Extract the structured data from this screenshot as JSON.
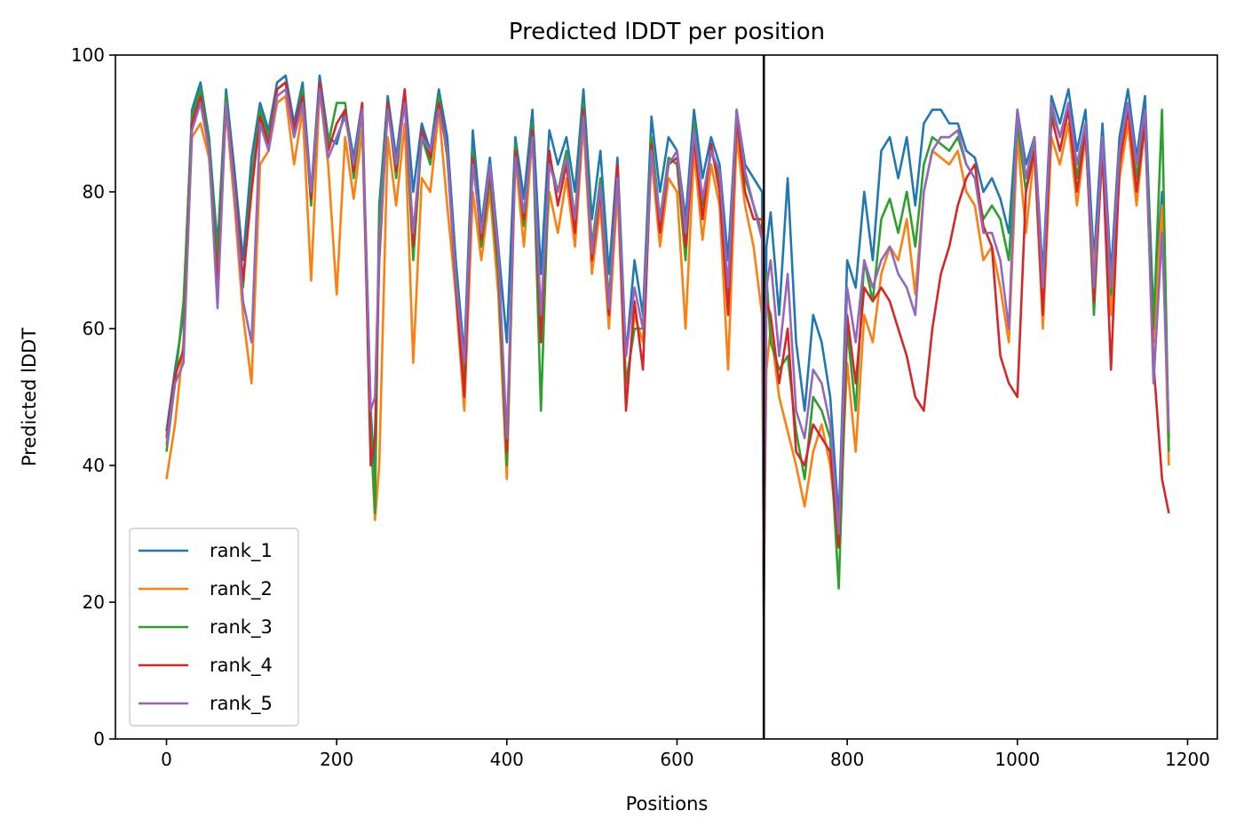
{
  "chart_data": {
    "type": "line",
    "title": "Predicted lDDT per position",
    "xlabel": "Positions",
    "ylabel": "Predicted lDDT",
    "xlim": [
      -60,
      1235
    ],
    "ylim": [
      0,
      100
    ],
    "xticks": [
      0,
      200,
      400,
      600,
      800,
      1000,
      1200
    ],
    "yticks": [
      0,
      20,
      40,
      60,
      80,
      100
    ],
    "grid": false,
    "legend_position": "lower-left",
    "vline_x": 702,
    "vline_color": "#000000",
    "series": [
      {
        "name": "rank_1",
        "color": "#1f77b4",
        "x": [
          0,
          10,
          20,
          30,
          40,
          50,
          60,
          70,
          80,
          90,
          100,
          110,
          120,
          130,
          140,
          150,
          160,
          170,
          180,
          190,
          200,
          210,
          220,
          230,
          240,
          245,
          250,
          260,
          270,
          280,
          290,
          300,
          310,
          320,
          330,
          340,
          350,
          360,
          370,
          380,
          390,
          400,
          410,
          420,
          430,
          440,
          450,
          460,
          470,
          480,
          490,
          500,
          510,
          520,
          530,
          540,
          550,
          560,
          570,
          580,
          590,
          600,
          610,
          620,
          630,
          640,
          650,
          660,
          670,
          680,
          690,
          700,
          702,
          705,
          710,
          720,
          730,
          740,
          750,
          760,
          770,
          780,
          790,
          800,
          810,
          820,
          830,
          840,
          850,
          860,
          870,
          880,
          890,
          900,
          910,
          920,
          930,
          940,
          950,
          960,
          970,
          980,
          990,
          1000,
          1010,
          1020,
          1030,
          1040,
          1050,
          1060,
          1070,
          1080,
          1090,
          1100,
          1110,
          1120,
          1130,
          1140,
          1150,
          1160,
          1170,
          1178
        ],
        "values": [
          45,
          54,
          62,
          92,
          96,
          88,
          72,
          95,
          83,
          70,
          85,
          93,
          89,
          96,
          97,
          90,
          96,
          80,
          97,
          88,
          87,
          92,
          85,
          93,
          48,
          38,
          78,
          94,
          85,
          95,
          80,
          90,
          86,
          95,
          88,
          70,
          56,
          89,
          75,
          85,
          72,
          58,
          88,
          79,
          92,
          68,
          89,
          84,
          88,
          80,
          95,
          76,
          86,
          68,
          85,
          56,
          70,
          62,
          91,
          80,
          88,
          86,
          76,
          92,
          82,
          88,
          84,
          70,
          92,
          84,
          82,
          80,
          18,
          72,
          77,
          62,
          82,
          58,
          48,
          62,
          58,
          50,
          32,
          70,
          66,
          80,
          70,
          86,
          88,
          82,
          88,
          78,
          90,
          92,
          92,
          90,
          90,
          86,
          85,
          80,
          82,
          79,
          74,
          92,
          84,
          88,
          68,
          94,
          90,
          95,
          86,
          92,
          70,
          90,
          68,
          88,
          95,
          85,
          94,
          62,
          80,
          44
        ]
      },
      {
        "name": "rank_2",
        "color": "#ff7f0e",
        "x": [
          0,
          10,
          20,
          30,
          40,
          50,
          60,
          70,
          80,
          90,
          100,
          110,
          120,
          130,
          140,
          150,
          160,
          170,
          180,
          190,
          200,
          210,
          220,
          230,
          240,
          245,
          250,
          260,
          270,
          280,
          290,
          300,
          310,
          320,
          330,
          340,
          350,
          360,
          370,
          380,
          390,
          400,
          410,
          420,
          430,
          440,
          450,
          460,
          470,
          480,
          490,
          500,
          510,
          520,
          530,
          540,
          550,
          560,
          570,
          580,
          590,
          600,
          610,
          620,
          630,
          640,
          650,
          660,
          670,
          680,
          690,
          700,
          702,
          705,
          710,
          720,
          730,
          740,
          750,
          760,
          770,
          780,
          790,
          800,
          810,
          820,
          830,
          840,
          850,
          860,
          870,
          880,
          890,
          900,
          910,
          920,
          930,
          940,
          950,
          960,
          970,
          980,
          990,
          1000,
          1010,
          1020,
          1030,
          1040,
          1050,
          1060,
          1070,
          1080,
          1090,
          1100,
          1110,
          1120,
          1130,
          1140,
          1150,
          1160,
          1170,
          1178
        ],
        "values": [
          38,
          46,
          58,
          88,
          90,
          85,
          68,
          92,
          78,
          62,
          52,
          84,
          86,
          93,
          94,
          84,
          92,
          67,
          95,
          84,
          65,
          88,
          79,
          89,
          45,
          32,
          40,
          88,
          78,
          90,
          55,
          82,
          80,
          92,
          78,
          65,
          48,
          80,
          70,
          80,
          65,
          38,
          85,
          72,
          88,
          60,
          80,
          74,
          82,
          72,
          90,
          68,
          78,
          60,
          80,
          50,
          62,
          58,
          85,
          72,
          82,
          80,
          60,
          86,
          73,
          84,
          78,
          54,
          88,
          78,
          72,
          62,
          22,
          54,
          60,
          50,
          45,
          40,
          34,
          42,
          46,
          40,
          28,
          55,
          42,
          62,
          58,
          68,
          72,
          70,
          76,
          65,
          80,
          86,
          85,
          84,
          86,
          80,
          78,
          70,
          72,
          66,
          58,
          88,
          74,
          86,
          60,
          88,
          84,
          90,
          78,
          88,
          68,
          86,
          62,
          82,
          90,
          78,
          90,
          58,
          78,
          40
        ]
      },
      {
        "name": "rank_3",
        "color": "#2ca02c",
        "x": [
          0,
          10,
          20,
          30,
          40,
          50,
          60,
          70,
          80,
          90,
          100,
          110,
          120,
          130,
          140,
          150,
          160,
          170,
          180,
          190,
          200,
          210,
          220,
          230,
          240,
          245,
          250,
          260,
          270,
          280,
          290,
          300,
          310,
          320,
          330,
          340,
          350,
          360,
          370,
          380,
          390,
          400,
          410,
          420,
          430,
          440,
          450,
          460,
          470,
          480,
          490,
          500,
          510,
          520,
          530,
          540,
          550,
          560,
          570,
          580,
          590,
          600,
          610,
          620,
          630,
          640,
          650,
          660,
          670,
          680,
          690,
          700,
          702,
          705,
          710,
          720,
          730,
          740,
          750,
          760,
          770,
          780,
          790,
          800,
          810,
          820,
          830,
          840,
          850,
          860,
          870,
          880,
          890,
          900,
          910,
          920,
          930,
          940,
          950,
          960,
          970,
          980,
          990,
          1000,
          1010,
          1020,
          1030,
          1040,
          1050,
          1060,
          1070,
          1080,
          1090,
          1100,
          1110,
          1120,
          1130,
          1140,
          1150,
          1160,
          1170,
          1178
        ],
        "values": [
          42,
          52,
          64,
          91,
          95,
          87,
          70,
          94,
          80,
          66,
          82,
          92,
          88,
          95,
          96,
          88,
          95,
          78,
          96,
          87,
          93,
          93,
          82,
          92,
          46,
          33,
          76,
          93,
          82,
          94,
          70,
          88,
          84,
          94,
          85,
          68,
          52,
          86,
          72,
          82,
          68,
          40,
          87,
          75,
          90,
          48,
          85,
          80,
          86,
          76,
          93,
          72,
          82,
          64,
          83,
          52,
          60,
          60,
          88,
          76,
          85,
          84,
          70,
          90,
          78,
          86,
          82,
          64,
          90,
          82,
          78,
          74,
          20,
          68,
          58,
          54,
          56,
          45,
          38,
          50,
          48,
          44,
          22,
          60,
          48,
          70,
          64,
          76,
          79,
          74,
          80,
          72,
          84,
          88,
          87,
          86,
          88,
          84,
          82,
          76,
          78,
          76,
          70,
          90,
          80,
          88,
          64,
          92,
          88,
          93,
          82,
          90,
          62,
          88,
          65,
          86,
          93,
          82,
          92,
          60,
          92,
          42
        ]
      },
      {
        "name": "rank_4",
        "color": "#d62728",
        "x": [
          0,
          10,
          20,
          30,
          40,
          50,
          60,
          70,
          80,
          90,
          100,
          110,
          120,
          130,
          140,
          150,
          160,
          170,
          180,
          190,
          200,
          210,
          220,
          230,
          240,
          245,
          250,
          260,
          270,
          280,
          290,
          300,
          310,
          320,
          330,
          340,
          350,
          360,
          370,
          380,
          390,
          400,
          410,
          420,
          430,
          440,
          450,
          460,
          470,
          480,
          490,
          500,
          510,
          520,
          530,
          540,
          550,
          560,
          570,
          580,
          590,
          600,
          610,
          620,
          630,
          640,
          650,
          660,
          670,
          680,
          690,
          700,
          702,
          705,
          710,
          720,
          730,
          740,
          750,
          760,
          770,
          780,
          790,
          800,
          810,
          820,
          830,
          840,
          850,
          860,
          870,
          880,
          890,
          900,
          910,
          920,
          930,
          940,
          950,
          960,
          970,
          980,
          990,
          1000,
          1010,
          1020,
          1030,
          1040,
          1050,
          1060,
          1070,
          1080,
          1090,
          1100,
          1110,
          1120,
          1130,
          1140,
          1150,
          1160,
          1170,
          1178
        ],
        "values": [
          44,
          53,
          57,
          90,
          94,
          86,
          66,
          93,
          81,
          67,
          80,
          91,
          87,
          95,
          96,
          89,
          94,
          79,
          96,
          86,
          90,
          92,
          83,
          93,
          40,
          44,
          70,
          93,
          83,
          95,
          72,
          89,
          85,
          93,
          86,
          66,
          50,
          85,
          73,
          83,
          70,
          42,
          86,
          76,
          89,
          58,
          86,
          78,
          84,
          74,
          92,
          70,
          80,
          62,
          84,
          48,
          64,
          54,
          87,
          74,
          84,
          85,
          72,
          88,
          76,
          87,
          80,
          62,
          91,
          80,
          76,
          76,
          22,
          64,
          62,
          52,
          60,
          42,
          40,
          46,
          44,
          42,
          28,
          62,
          52,
          66,
          64,
          66,
          64,
          60,
          56,
          50,
          48,
          60,
          68,
          72,
          78,
          82,
          84,
          75,
          72,
          56,
          52,
          50,
          80,
          86,
          62,
          91,
          86,
          92,
          80,
          89,
          64,
          86,
          54,
          84,
          92,
          80,
          90,
          55,
          38,
          33
        ]
      },
      {
        "name": "rank_5",
        "color": "#9467bd",
        "x": [
          0,
          10,
          20,
          30,
          40,
          50,
          60,
          70,
          80,
          90,
          100,
          110,
          120,
          130,
          140,
          150,
          160,
          170,
          180,
          190,
          200,
          210,
          220,
          230,
          240,
          245,
          250,
          260,
          270,
          280,
          290,
          300,
          310,
          320,
          330,
          340,
          350,
          360,
          370,
          380,
          390,
          400,
          410,
          420,
          430,
          440,
          450,
          460,
          470,
          480,
          490,
          500,
          510,
          520,
          530,
          540,
          550,
          560,
          570,
          580,
          590,
          600,
          610,
          620,
          630,
          640,
          650,
          660,
          670,
          680,
          690,
          700,
          702,
          705,
          710,
          720,
          730,
          740,
          750,
          760,
          770,
          780,
          790,
          800,
          810,
          820,
          830,
          840,
          850,
          860,
          870,
          880,
          890,
          900,
          910,
          920,
          930,
          940,
          950,
          960,
          970,
          980,
          990,
          1000,
          1010,
          1020,
          1030,
          1040,
          1050,
          1060,
          1070,
          1080,
          1090,
          1100,
          1110,
          1120,
          1130,
          1140,
          1150,
          1160,
          1170,
          1178
        ],
        "values": [
          43,
          52,
          55,
          89,
          93,
          86,
          63,
          93,
          80,
          64,
          58,
          90,
          86,
          94,
          95,
          88,
          93,
          80,
          95,
          85,
          88,
          91,
          84,
          92,
          48,
          50,
          72,
          92,
          84,
          93,
          74,
          88,
          86,
          92,
          86,
          67,
          55,
          84,
          74,
          84,
          71,
          44,
          85,
          77,
          88,
          62,
          84,
          80,
          85,
          76,
          91,
          71,
          81,
          63,
          82,
          56,
          66,
          60,
          86,
          76,
          84,
          86,
          74,
          89,
          79,
          86,
          83,
          66,
          92,
          83,
          78,
          73,
          24,
          66,
          70,
          56,
          68,
          48,
          44,
          54,
          52,
          46,
          30,
          66,
          58,
          70,
          66,
          70,
          72,
          68,
          66,
          62,
          80,
          86,
          88,
          88,
          89,
          84,
          82,
          74,
          74,
          70,
          60,
          92,
          82,
          88,
          66,
          93,
          88,
          93,
          84,
          90,
          66,
          88,
          66,
          86,
          93,
          84,
          92,
          52,
          74,
          45
        ]
      }
    ]
  }
}
